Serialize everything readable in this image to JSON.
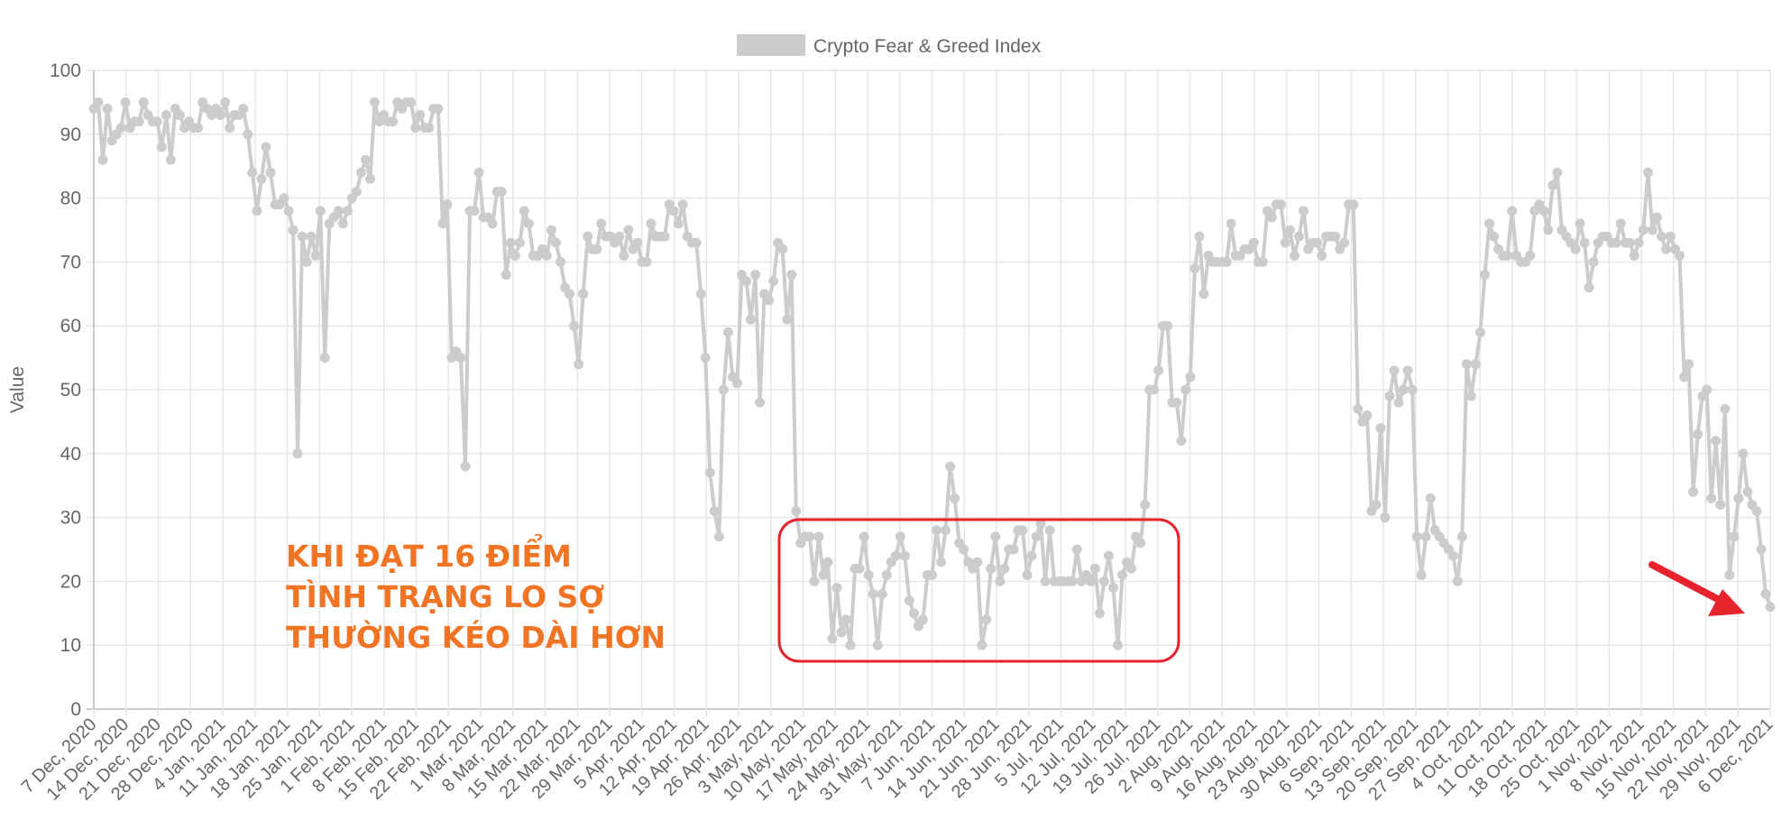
{
  "chart_data": {
    "type": "line",
    "legend": "Crypto Fear & Greed Index",
    "ylabel": "Value",
    "ylim": [
      0,
      100
    ],
    "yticks": [
      0,
      10,
      20,
      30,
      40,
      50,
      60,
      70,
      80,
      90,
      100
    ],
    "grid": true,
    "legend_position": "top-center",
    "x_tick_labels": [
      "7 Dec, 2020",
      "14 Dec, 2020",
      "21 Dec, 2020",
      "28 Dec, 2020",
      "4 Jan, 2021",
      "11 Jan, 2021",
      "18 Jan, 2021",
      "25 Jan, 2021",
      "1 Feb, 2021",
      "8 Feb, 2021",
      "15 Feb, 2021",
      "22 Feb, 2021",
      "1 Mar, 2021",
      "8 Mar, 2021",
      "15 Mar, 2021",
      "22 Mar, 2021",
      "29 Mar, 2021",
      "5 Apr, 2021",
      "12 Apr, 2021",
      "19 Apr, 2021",
      "26 Apr, 2021",
      "3 May, 2021",
      "10 May, 2021",
      "17 May, 2021",
      "24 May, 2021",
      "31 May, 2021",
      "7 Jun, 2021",
      "14 Jun, 2021",
      "21 Jun, 2021",
      "28 Jun, 2021",
      "5 Jul, 2021",
      "12 Jul, 2021",
      "19 Jul, 2021",
      "26 Jul, 2021",
      "2 Aug, 2021",
      "9 Aug, 2021",
      "16 Aug, 2021",
      "23 Aug, 2021",
      "30 Aug, 2021",
      "6 Sep, 2021",
      "13 Sep, 2021",
      "20 Sep, 2021",
      "27 Sep, 2021",
      "4 Oct, 2021",
      "11 Oct, 2021",
      "18 Oct, 2021",
      "25 Oct, 2021",
      "1 Nov, 2021",
      "8 Nov, 2021",
      "15 Nov, 2021",
      "22 Nov, 2021",
      "29 Nov, 2021",
      "6 Dec, 2021"
    ],
    "series": [
      {
        "name": "Crypto Fear & Greed Index",
        "color": "#cccccc",
        "values": [
          94,
          95,
          86,
          94,
          89,
          90,
          91,
          95,
          91,
          92,
          92,
          95,
          93,
          92,
          92,
          88,
          93,
          86,
          94,
          93,
          91,
          92,
          91,
          91,
          95,
          94,
          93,
          94,
          93,
          95,
          91,
          93,
          93,
          94,
          90,
          84,
          78,
          83,
          88,
          84,
          79,
          79,
          80,
          78,
          75,
          40,
          74,
          70,
          74,
          71,
          78,
          55,
          76,
          77,
          78,
          76,
          78,
          80,
          81,
          84,
          86,
          83,
          95,
          92,
          93,
          92,
          92,
          95,
          94,
          95,
          95,
          91,
          93,
          91,
          91,
          94,
          94,
          76,
          79,
          55,
          56,
          55,
          38,
          78,
          78,
          84,
          77,
          77,
          76,
          81,
          81,
          68,
          73,
          71,
          73,
          78,
          76,
          71,
          71,
          72,
          71,
          75,
          73,
          70,
          66,
          65,
          60,
          54,
          65,
          74,
          72,
          72,
          76,
          74,
          74,
          73,
          74,
          71,
          75,
          72,
          73,
          70,
          70,
          76,
          74,
          74,
          74,
          79,
          78,
          76,
          79,
          74,
          73,
          73,
          65,
          55,
          37,
          31,
          27,
          50,
          59,
          52,
          51,
          68,
          67,
          61,
          68,
          48,
          65,
          64,
          67,
          73,
          72,
          61,
          68,
          31,
          26,
          27,
          27,
          20,
          27,
          21,
          23,
          11,
          19,
          12,
          14,
          10,
          22,
          22,
          27,
          21,
          18,
          10,
          18,
          21,
          23,
          24,
          27,
          24,
          17,
          15,
          13,
          14,
          21,
          21,
          28,
          23,
          28,
          38,
          33,
          26,
          25,
          23,
          22,
          23,
          10,
          14,
          22,
          27,
          20,
          22,
          25,
          25,
          28,
          28,
          21,
          24,
          27,
          29,
          20,
          28,
          20,
          20,
          20,
          20,
          20,
          25,
          20,
          21,
          20,
          22,
          15,
          20,
          24,
          19,
          10,
          21,
          23,
          22,
          27,
          26,
          32,
          50,
          50,
          53,
          60,
          60,
          48,
          48,
          42,
          50,
          52,
          69,
          74,
          65,
          71,
          70,
          70,
          70,
          70,
          76,
          71,
          71,
          72,
          72,
          73,
          70,
          70,
          78,
          77,
          79,
          79,
          73,
          75,
          71,
          74,
          78,
          72,
          73,
          73,
          71,
          74,
          74,
          74,
          72,
          73,
          79,
          79,
          47,
          45,
          46,
          31,
          32,
          44,
          30,
          49,
          53,
          48,
          50,
          53,
          50,
          27,
          21,
          27,
          33,
          28,
          27,
          26,
          25,
          24,
          20,
          27,
          54,
          49,
          54,
          59,
          68,
          76,
          74,
          72,
          71,
          71,
          78,
          71,
          70,
          70,
          71,
          78,
          79,
          78,
          75,
          82,
          84,
          75,
          74,
          73,
          72,
          76,
          73,
          66,
          70,
          73,
          74,
          74,
          73,
          73,
          76,
          73,
          73,
          71,
          73,
          75,
          84,
          75,
          77,
          74,
          72,
          74,
          72,
          71,
          52,
          54,
          34,
          43,
          49,
          50,
          33,
          42,
          32,
          47,
          21,
          27,
          33,
          40,
          34,
          32,
          31,
          25,
          18,
          16
        ]
      }
    ],
    "annotations": {
      "text_lines": [
        "KHI ĐẠT 16 ĐIỂM",
        "TÌNH TRẠNG LO SỢ",
        "THƯỜNG KÉO DÀI HƠN"
      ],
      "highlight_box_color": "#e8222c",
      "arrow_color": "#e8222c",
      "text_color": "#f07424"
    }
  }
}
